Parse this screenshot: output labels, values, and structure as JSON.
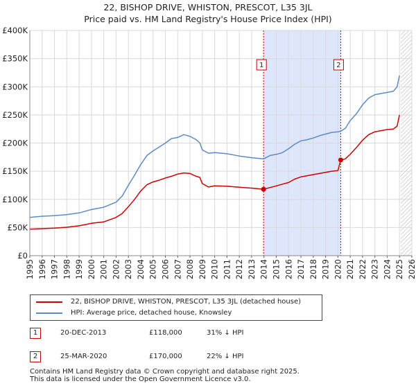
{
  "header": {
    "title_line1": "22, BISHOP DRIVE, WHISTON, PRESCOT, L35 3JL",
    "title_line2": "Price paid vs. HM Land Registry's House Price Index (HPI)"
  },
  "legend": {
    "property_label": "22, BISHOP DRIVE, WHISTON, PRESCOT, L35 3JL (detached house)",
    "hpi_label": "HPI: Average price, detached house, Knowsley"
  },
  "transactions": [
    {
      "badge": "1",
      "date": "20-DEC-2013",
      "price": "£118,000",
      "hpi": "31% ↓ HPI"
    },
    {
      "badge": "2",
      "date": "25-MAR-2020",
      "price": "£170,000",
      "hpi": "22% ↓ HPI"
    }
  ],
  "footer": {
    "line1": "Contains HM Land Registry data © Crown copyright and database right 2025.",
    "line2": "This data is licensed under the Open Government Licence v3.0."
  },
  "chart_data": {
    "type": "line",
    "title": "22, BISHOP DRIVE, WHISTON, PRESCOT, L35 3JL — Price paid vs. HM Land Registry's House Price Index (HPI)",
    "xlabel": "",
    "ylabel": "",
    "xlim": [
      1995,
      2026
    ],
    "ylim": [
      0,
      400000
    ],
    "x_ticks": [
      "1995",
      "1996",
      "1997",
      "1998",
      "1999",
      "2000",
      "2001",
      "2002",
      "2003",
      "2004",
      "2005",
      "2006",
      "2007",
      "2008",
      "2009",
      "2010",
      "2011",
      "2012",
      "2013",
      "2014",
      "2015",
      "2016",
      "2017",
      "2018",
      "2019",
      "2020",
      "2021",
      "2022",
      "2023",
      "2024",
      "2025",
      "2026"
    ],
    "y_ticks": [
      {
        "value": 0,
        "label": "£0"
      },
      {
        "value": 50000,
        "label": "£50K"
      },
      {
        "value": 100000,
        "label": "£100K"
      },
      {
        "value": 150000,
        "label": "£150K"
      },
      {
        "value": 200000,
        "label": "£200K"
      },
      {
        "value": 250000,
        "label": "£250K"
      },
      {
        "value": 300000,
        "label": "£300K"
      },
      {
        "value": 350000,
        "label": "£350K"
      },
      {
        "value": 400000,
        "label": "£400K"
      }
    ],
    "grid": true,
    "shaded_span": {
      "from": 2013.97,
      "to": 2020.23,
      "color": "#dde6fb"
    },
    "future_hatch_from": 2025.1,
    "colors": {
      "property": "#cc0000",
      "hpi": "#5b8ac8"
    },
    "series": [
      {
        "name": "22, BISHOP DRIVE, WHISTON, PRESCOT, L35 3JL (detached house)",
        "color": "#cc0000",
        "points": [
          [
            1995.0,
            47000
          ],
          [
            1996.0,
            48000
          ],
          [
            1997.0,
            49000
          ],
          [
            1998.0,
            50500
          ],
          [
            1999.0,
            53000
          ],
          [
            2000.0,
            57500
          ],
          [
            2001.0,
            60000
          ],
          [
            2002.0,
            68000
          ],
          [
            2002.5,
            75000
          ],
          [
            2003.0,
            87000
          ],
          [
            2003.5,
            100000
          ],
          [
            2004.0,
            115000
          ],
          [
            2004.5,
            126000
          ],
          [
            2005.0,
            131000
          ],
          [
            2005.5,
            134000
          ],
          [
            2006.0,
            138000
          ],
          [
            2006.5,
            141000
          ],
          [
            2007.0,
            145000
          ],
          [
            2007.5,
            147000
          ],
          [
            2008.0,
            146000
          ],
          [
            2008.5,
            141000
          ],
          [
            2008.8,
            139000
          ],
          [
            2009.0,
            128000
          ],
          [
            2009.5,
            122000
          ],
          [
            2010.0,
            124000
          ],
          [
            2011.0,
            123500
          ],
          [
            2012.0,
            121500
          ],
          [
            2013.0,
            120000
          ],
          [
            2013.97,
            118000
          ],
          [
            2014.5,
            121000
          ],
          [
            2015.0,
            124000
          ],
          [
            2015.5,
            127000
          ],
          [
            2016.0,
            130000
          ],
          [
            2016.5,
            136000
          ],
          [
            2017.0,
            140000
          ],
          [
            2017.5,
            142000
          ],
          [
            2018.0,
            144000
          ],
          [
            2018.5,
            146000
          ],
          [
            2019.0,
            148000
          ],
          [
            2019.5,
            150000
          ],
          [
            2020.0,
            151000
          ],
          [
            2020.23,
            170000
          ],
          [
            2020.6,
            172000
          ],
          [
            2021.0,
            180000
          ],
          [
            2021.5,
            192000
          ],
          [
            2022.0,
            205000
          ],
          [
            2022.5,
            215000
          ],
          [
            2023.0,
            220000
          ],
          [
            2023.5,
            222000
          ],
          [
            2024.0,
            224000
          ],
          [
            2024.5,
            225000
          ],
          [
            2024.8,
            230000
          ],
          [
            2025.0,
            250000
          ]
        ]
      },
      {
        "name": "HPI: Average price, detached house, Knowsley",
        "color": "#5b8ac8",
        "points": [
          [
            1995.0,
            68000
          ],
          [
            1996.0,
            70000
          ],
          [
            1997.0,
            71000
          ],
          [
            1998.0,
            73000
          ],
          [
            1999.0,
            76000
          ],
          [
            2000.0,
            82000
          ],
          [
            2001.0,
            86000
          ],
          [
            2002.0,
            95000
          ],
          [
            2002.5,
            106000
          ],
          [
            2003.0,
            125000
          ],
          [
            2003.5,
            143000
          ],
          [
            2004.0,
            162000
          ],
          [
            2004.5,
            178000
          ],
          [
            2005.0,
            186000
          ],
          [
            2005.5,
            193000
          ],
          [
            2006.0,
            200000
          ],
          [
            2006.5,
            208000
          ],
          [
            2007.0,
            210000
          ],
          [
            2007.5,
            215000
          ],
          [
            2008.0,
            212000
          ],
          [
            2008.5,
            206000
          ],
          [
            2008.8,
            200000
          ],
          [
            2009.0,
            188000
          ],
          [
            2009.5,
            182000
          ],
          [
            2010.0,
            183000
          ],
          [
            2011.0,
            181000
          ],
          [
            2012.0,
            177000
          ],
          [
            2013.0,
            174000
          ],
          [
            2013.97,
            172000
          ],
          [
            2014.5,
            178000
          ],
          [
            2015.0,
            180000
          ],
          [
            2015.5,
            183000
          ],
          [
            2016.0,
            190000
          ],
          [
            2016.5,
            198000
          ],
          [
            2017.0,
            204000
          ],
          [
            2017.5,
            206000
          ],
          [
            2018.0,
            209000
          ],
          [
            2018.5,
            213000
          ],
          [
            2019.0,
            216000
          ],
          [
            2019.5,
            219000
          ],
          [
            2020.0,
            220000
          ],
          [
            2020.23,
            221000
          ],
          [
            2020.6,
            226000
          ],
          [
            2021.0,
            240000
          ],
          [
            2021.5,
            252000
          ],
          [
            2022.0,
            268000
          ],
          [
            2022.5,
            280000
          ],
          [
            2023.0,
            286000
          ],
          [
            2023.5,
            288000
          ],
          [
            2024.0,
            290000
          ],
          [
            2024.5,
            292000
          ],
          [
            2024.8,
            300000
          ],
          [
            2025.0,
            320000
          ]
        ]
      }
    ],
    "markers": [
      {
        "label": "1",
        "x": 2013.97,
        "y": 118000
      },
      {
        "label": "2",
        "x": 2020.23,
        "y": 170000
      }
    ]
  }
}
